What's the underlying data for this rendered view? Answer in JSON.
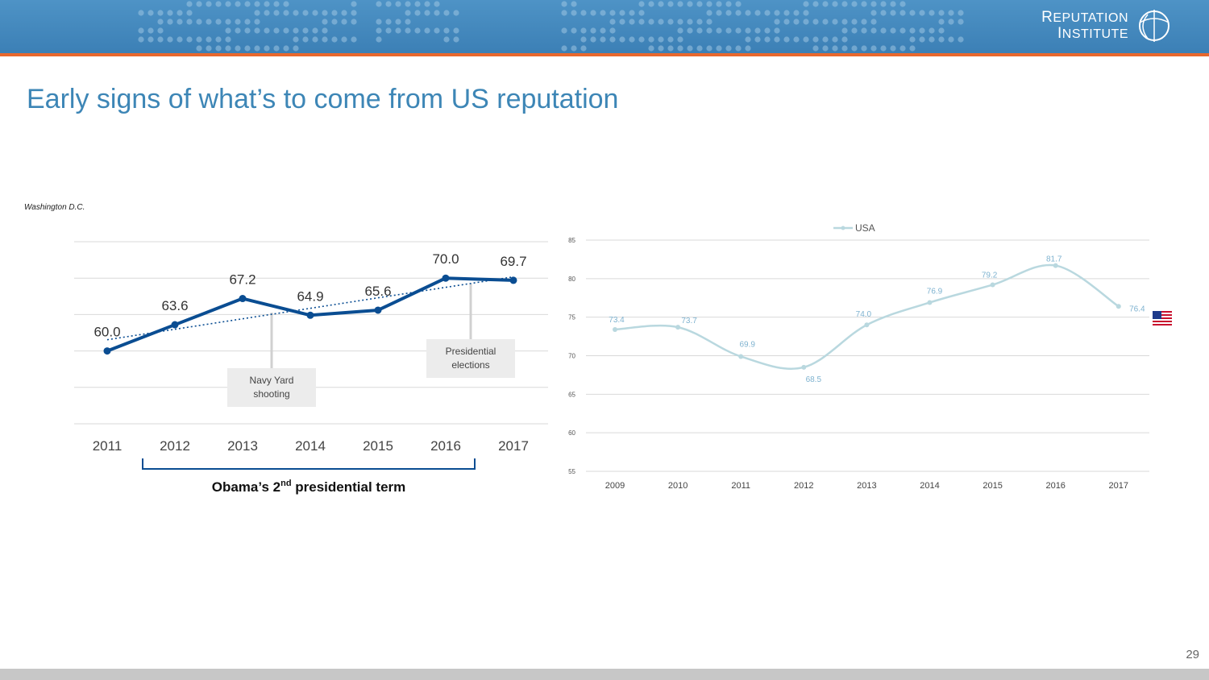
{
  "title": "Early signs of what’s to come from US reputation",
  "caption": "Washington D.C.",
  "page_number": "29",
  "logo": {
    "line1_first": "R",
    "line1_rest": "EPUTATION",
    "line2_first": "I",
    "line2_rest": "NSTITUTE"
  },
  "colors": {
    "header": "#3f84ba",
    "accent": "#e8682d",
    "title": "#3d86b6",
    "dc_line": "#0a4d92",
    "usa_line": "#b9d8df"
  },
  "chart_data": [
    {
      "type": "line",
      "title": "Washington D.C.",
      "categories": [
        "2011",
        "2012",
        "2013",
        "2014",
        "2015",
        "2016",
        "2017"
      ],
      "series": [
        {
          "name": "Washington D.C.",
          "values": [
            60.0,
            63.6,
            67.2,
            64.9,
            65.6,
            70.0,
            69.7
          ]
        }
      ],
      "data_labels": [
        "60.0",
        "63.6",
        "67.2",
        "64.9",
        "65.6",
        "70.0",
        "69.7"
      ],
      "trendline": "linear (dotted)",
      "ylim": [
        50,
        75
      ],
      "annotations": [
        {
          "line1": "Navy Yard",
          "line2": "shooting",
          "year": "2013"
        },
        {
          "line1": "Presidential",
          "line2": "elections",
          "year": "2016"
        }
      ],
      "bracket": {
        "prefix": "Obama’s 2",
        "sup": "nd",
        "suffix": " presidential term",
        "from": "2012",
        "to": "2016"
      }
    },
    {
      "type": "line",
      "legend": "USA",
      "categories": [
        "2009",
        "2010",
        "2011",
        "2012",
        "2013",
        "2014",
        "2015",
        "2016",
        "2017"
      ],
      "series": [
        {
          "name": "USA",
          "values": [
            73.4,
            73.7,
            69.9,
            68.5,
            74.0,
            76.9,
            79.2,
            81.7,
            76.4
          ]
        }
      ],
      "data_labels": [
        "73.4",
        "73.7",
        "69.9",
        "68.5",
        "74.0",
        "76.9",
        "79.2",
        "81.7",
        "76.4"
      ],
      "yticks": [
        "55",
        "60",
        "65",
        "70",
        "75",
        "80",
        "85"
      ],
      "ylim": [
        55,
        85
      ]
    }
  ]
}
